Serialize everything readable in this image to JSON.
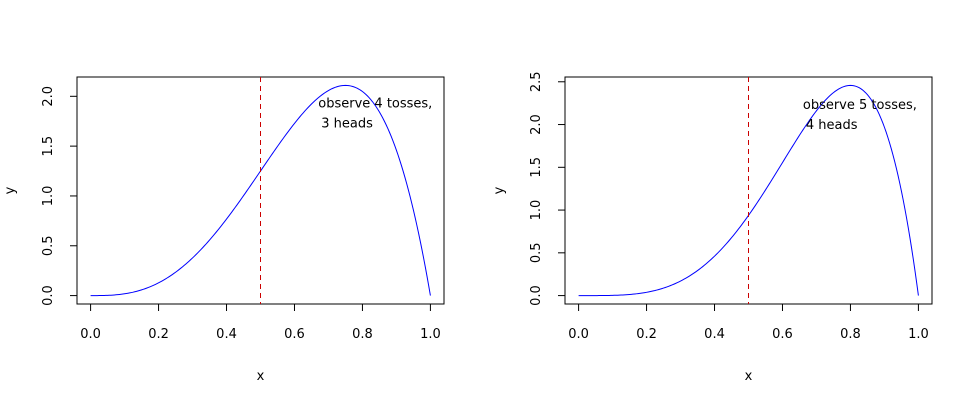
{
  "chart_data": [
    {
      "type": "line",
      "xlabel": "x",
      "ylabel": "y",
      "xlim": [
        0,
        1
      ],
      "ylim": [
        0,
        2.109375
      ],
      "xticks": [
        "0.0",
        "0.2",
        "0.4",
        "0.6",
        "0.8",
        "1.0"
      ],
      "yticks": [
        "0.0",
        "0.5",
        "1.0",
        "1.5",
        "2.0"
      ],
      "curve": {
        "kind": "beta_density",
        "alpha": 4,
        "beta": 2,
        "color": "#0000ff",
        "x_range": [
          0,
          1
        ]
      },
      "vline": {
        "x": 0.5,
        "color": "#cc0000",
        "style": "dashed"
      },
      "annotation": {
        "lines": [
          "observe 4 tosses,",
          "3 heads"
        ],
        "x": 0.67,
        "y": 1.93
      },
      "series": [
        {
          "x": [
            0.0,
            0.1,
            0.2,
            0.3,
            0.4,
            0.5,
            0.6,
            0.7,
            0.75,
            0.8,
            0.9,
            1.0
          ],
          "values": [
            0.0,
            0.0018,
            0.032,
            0.1512,
            0.384,
            1.25,
            1.728,
            2.058,
            2.109,
            2.048,
            1.458,
            0.0
          ]
        }
      ]
    },
    {
      "type": "line",
      "xlabel": "x",
      "ylabel": "y",
      "xlim": [
        0,
        1
      ],
      "ylim": [
        0,
        2.4576
      ],
      "xticks": [
        "0.0",
        "0.2",
        "0.4",
        "0.6",
        "0.8",
        "1.0"
      ],
      "yticks": [
        "0.0",
        "0.5",
        "1.0",
        "1.5",
        "2.0",
        "2.5"
      ],
      "curve": {
        "kind": "beta_density",
        "alpha": 5,
        "beta": 2,
        "color": "#0000ff",
        "x_range": [
          0,
          1
        ]
      },
      "vline": {
        "x": 0.5,
        "color": "#cc0000",
        "style": "dashed"
      },
      "annotation": {
        "lines": [
          "observe 5 tosses,",
          "4 heads"
        ],
        "x": 0.66,
        "y": 2.23
      },
      "series": [
        {
          "x": [
            0.0,
            0.1,
            0.2,
            0.3,
            0.4,
            0.5,
            0.6,
            0.7,
            0.8,
            0.9,
            1.0
          ],
          "values": [
            0.0,
            0.0005,
            0.0096,
            0.0567,
            0.2048,
            0.9375,
            1.5552,
            2.1609,
            2.4576,
            1.9683,
            0.0
          ]
        }
      ]
    }
  ]
}
